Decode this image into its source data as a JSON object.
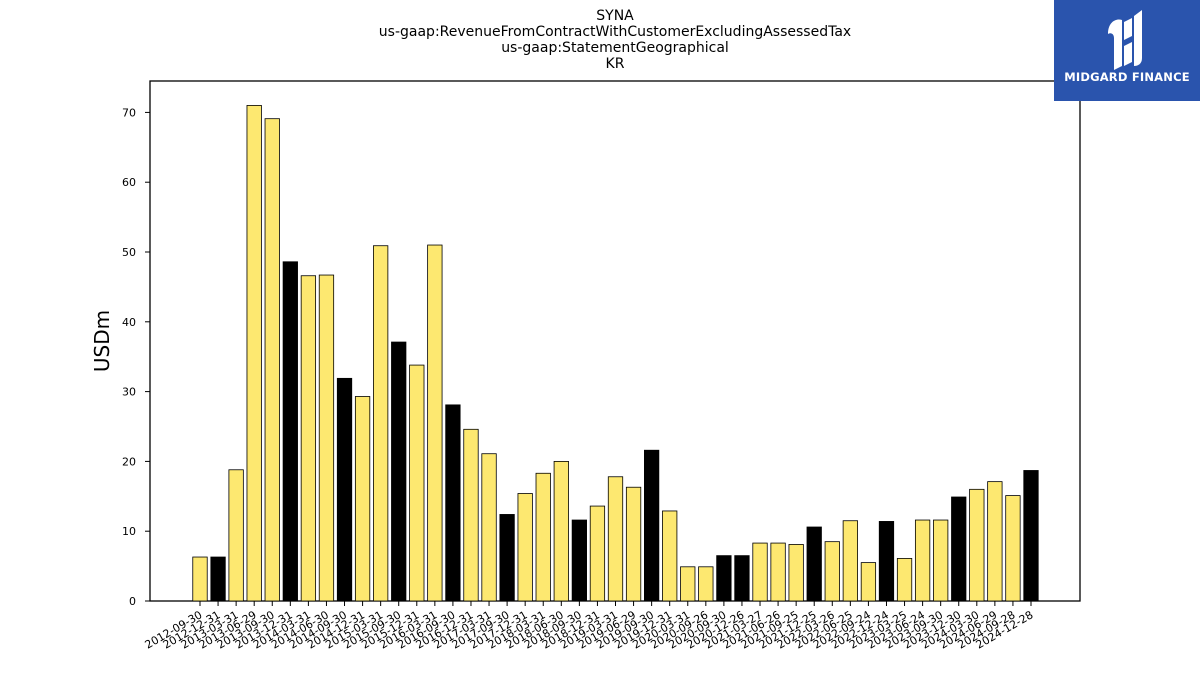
{
  "chart_data": {
    "type": "bar",
    "title_lines": [
      "SYNA",
      "us-gaap:RevenueFromContractWithCustomerExcludingAssessedTax",
      "us-gaap:StatementGeographical",
      "KR"
    ],
    "ylabel": "USDm",
    "xlabel": "",
    "ylim": [
      0,
      74.5
    ],
    "yticks": [
      0,
      10,
      20,
      30,
      40,
      50,
      60,
      70
    ],
    "grid": false,
    "colors": {
      "default": "#fde870",
      "highlight": "#000000",
      "edge": "#000000"
    },
    "categories": [
      "2012-09-30",
      "2012-12-31",
      "2013-03-31",
      "2013-06-29",
      "2013-09-30",
      "2013-12-31",
      "2014-03-31",
      "2014-06-30",
      "2014-09-30",
      "2014-12-31",
      "2015-03-31",
      "2015-09-30",
      "2015-12-31",
      "2016-03-31",
      "2016-09-30",
      "2016-12-31",
      "2017-03-31",
      "2017-09-30",
      "2017-12-31",
      "2018-03-31",
      "2018-06-30",
      "2018-09-30",
      "2018-12-31",
      "2019-03-31",
      "2019-06-29",
      "2019-09-30",
      "2019-12-31",
      "2020-03-31",
      "2020-09-26",
      "2020-09-30",
      "2020-12-26",
      "2021-03-27",
      "2021-06-26",
      "2021-09-25",
      "2021-12-25",
      "2022-03-26",
      "2022-06-25",
      "2022-09-24",
      "2022-12-24",
      "2023-03-25",
      "2023-06-24",
      "2023-09-30",
      "2023-12-30",
      "2024-03-30",
      "2024-06-29",
      "2024-09-28",
      "2024-12-28"
    ],
    "values": [
      6.3,
      6.3,
      18.8,
      71.0,
      69.1,
      48.6,
      46.6,
      46.7,
      31.9,
      29.3,
      50.9,
      37.1,
      33.8,
      51.0,
      28.1,
      24.6,
      21.1,
      12.4,
      15.4,
      18.3,
      20.0,
      11.6,
      13.6,
      17.8,
      16.3,
      21.6,
      12.9,
      4.9,
      4.9,
      6.5,
      6.5,
      8.3,
      8.3,
      8.1,
      10.6,
      8.5,
      11.5,
      5.5,
      11.4,
      6.1,
      11.6,
      11.6,
      14.9,
      16.0,
      17.1,
      15.1,
      18.7
    ],
    "highlighted": [
      1,
      5,
      8,
      11,
      14,
      17,
      21,
      25,
      29,
      30,
      34,
      38,
      42,
      46
    ]
  },
  "logo": {
    "text": "MIDGARD FINANCE",
    "background": "#2a54ad"
  }
}
